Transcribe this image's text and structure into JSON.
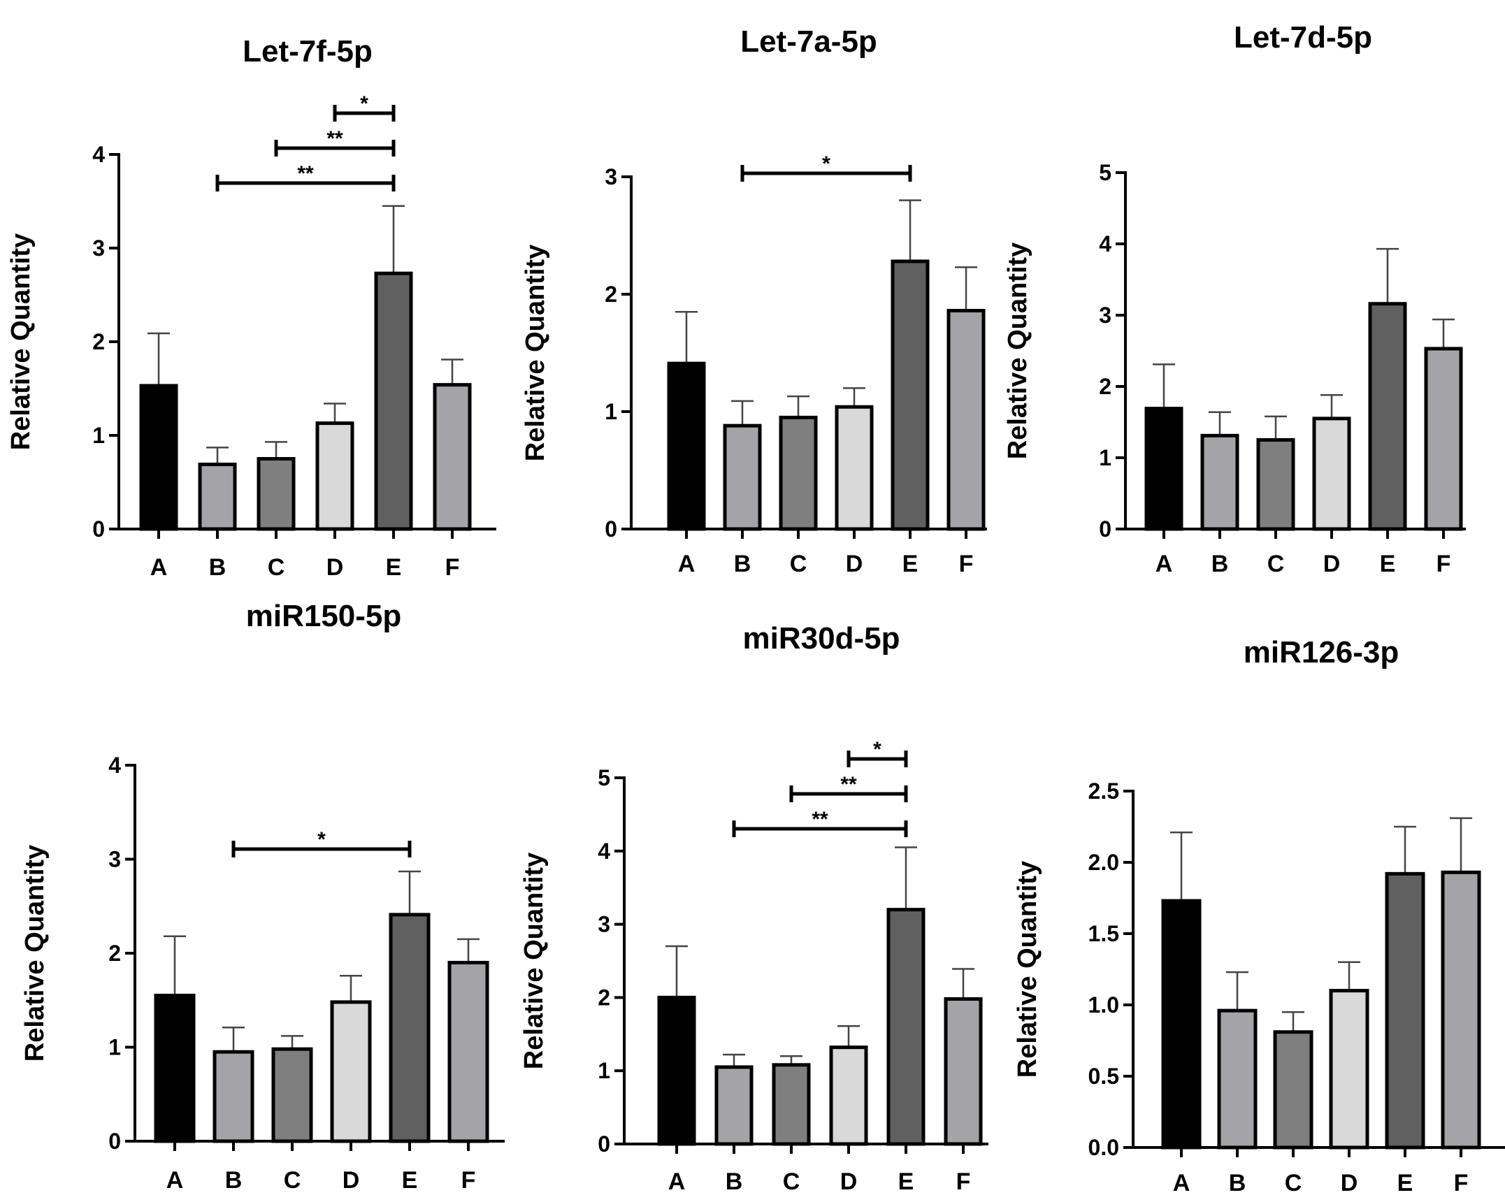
{
  "colors": {
    "A": "#000000",
    "B": "#a3a3a8",
    "C": "#7f7f7f",
    "D": "#d9d9d9",
    "E": "#606060",
    "F": "#a3a3a8",
    "axis": "#000000"
  },
  "chart_data": [
    {
      "type": "bar",
      "title": "Let-7f-5p",
      "ylabel": "Relative Quantity",
      "categories": [
        "A",
        "B",
        "C",
        "D",
        "E",
        "F"
      ],
      "values": [
        1.53,
        0.69,
        0.75,
        1.13,
        2.73,
        1.54
      ],
      "errors": [
        0.56,
        0.18,
        0.18,
        0.21,
        0.72,
        0.27
      ],
      "ylim": [
        0,
        4
      ],
      "yticks": [
        "0",
        "1",
        "2",
        "3",
        "4"
      ],
      "significance": [
        {
          "from": "B",
          "to": "E",
          "label": "**"
        },
        {
          "from": "C",
          "to": "E",
          "label": "**"
        },
        {
          "from": "D",
          "to": "E",
          "label": "*"
        }
      ]
    },
    {
      "type": "bar",
      "title": "Let-7a-5p",
      "ylabel": "Relative Quantity",
      "categories": [
        "A",
        "B",
        "C",
        "D",
        "E",
        "F"
      ],
      "values": [
        1.41,
        0.88,
        0.95,
        1.04,
        2.28,
        1.86
      ],
      "errors": [
        0.44,
        0.21,
        0.18,
        0.16,
        0.52,
        0.37
      ],
      "ylim": [
        0,
        3
      ],
      "yticks": [
        "0",
        "1",
        "2",
        "3"
      ],
      "significance": [
        {
          "from": "B",
          "to": "E",
          "label": "*"
        }
      ]
    },
    {
      "type": "bar",
      "title": "Let-7d-5p",
      "ylabel": "Relative Quantity",
      "categories": [
        "A",
        "B",
        "C",
        "D",
        "E",
        "F"
      ],
      "values": [
        1.69,
        1.31,
        1.25,
        1.55,
        3.16,
        2.53
      ],
      "errors": [
        0.62,
        0.33,
        0.33,
        0.33,
        0.77,
        0.41
      ],
      "ylim": [
        0,
        5
      ],
      "yticks": [
        "0",
        "1",
        "2",
        "3",
        "4",
        "5"
      ],
      "significance": []
    },
    {
      "type": "bar",
      "title": "miR150-5p",
      "ylabel": "Relative Quantity",
      "categories": [
        "A",
        "B",
        "C",
        "D",
        "E",
        "F"
      ],
      "values": [
        1.55,
        0.95,
        0.98,
        1.48,
        2.41,
        1.9
      ],
      "errors": [
        0.63,
        0.26,
        0.14,
        0.28,
        0.46,
        0.25
      ],
      "ylim": [
        0,
        4
      ],
      "yticks": [
        "0",
        "1",
        "2",
        "3",
        "4"
      ],
      "significance": [
        {
          "from": "B",
          "to": "E",
          "label": "*"
        }
      ]
    },
    {
      "type": "bar",
      "title": "miR30d-5p",
      "ylabel": "Relative Quantity",
      "categories": [
        "A",
        "B",
        "C",
        "D",
        "E",
        "F"
      ],
      "values": [
        2.0,
        1.05,
        1.08,
        1.32,
        3.2,
        1.98
      ],
      "errors": [
        0.7,
        0.17,
        0.12,
        0.29,
        0.85,
        0.41
      ],
      "ylim": [
        0,
        5
      ],
      "yticks": [
        "0",
        "1",
        "2",
        "3",
        "4",
        "5"
      ],
      "significance": [
        {
          "from": "B",
          "to": "E",
          "label": "**"
        },
        {
          "from": "C",
          "to": "E",
          "label": "**"
        },
        {
          "from": "D",
          "to": "E",
          "label": "*"
        }
      ]
    },
    {
      "type": "bar",
      "title": "miR126-3p",
      "ylabel": "Relative Quantity",
      "categories": [
        "A",
        "B",
        "C",
        "D",
        "E",
        "F"
      ],
      "values": [
        1.73,
        0.96,
        0.81,
        1.1,
        1.92,
        1.93
      ],
      "errors": [
        0.48,
        0.27,
        0.14,
        0.2,
        0.33,
        0.38
      ],
      "ylim": [
        0,
        2.5
      ],
      "yticks": [
        "0.0",
        "0.5",
        "1.0",
        "1.5",
        "2.0",
        "2.5"
      ],
      "significance": []
    }
  ]
}
